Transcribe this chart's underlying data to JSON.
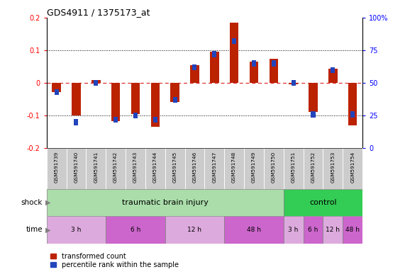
{
  "title": "GDS4911 / 1375173_at",
  "samples": [
    "GSM591739",
    "GSM591740",
    "GSM591741",
    "GSM591742",
    "GSM591743",
    "GSM591744",
    "GSM591745",
    "GSM591746",
    "GSM591747",
    "GSM591748",
    "GSM591749",
    "GSM591750",
    "GSM591751",
    "GSM591752",
    "GSM591753",
    "GSM591754"
  ],
  "red_values": [
    -0.028,
    -0.1,
    0.008,
    -0.118,
    -0.095,
    -0.135,
    -0.058,
    0.055,
    0.095,
    0.185,
    0.065,
    0.075,
    -0.004,
    -0.088,
    0.043,
    -0.13
  ],
  "blue_values_pct": [
    43,
    20,
    50,
    22,
    25,
    22,
    37,
    62,
    72,
    82,
    65,
    65,
    50,
    26,
    60,
    26
  ],
  "ylim_left": [
    -0.2,
    0.2
  ],
  "ylim_right": [
    0,
    100
  ],
  "red_color": "#BB2200",
  "blue_color": "#2244BB",
  "shock_tbi_color": "#AADDAA",
  "shock_ctrl_color": "#33CC55",
  "time_colors": [
    "#DDAADD",
    "#CC66CC",
    "#DDAADD",
    "#CC66CC",
    "#DDAADD",
    "#CC66CC",
    "#DDAADD",
    "#CC66CC"
  ],
  "label_bg_color": "#CCCCCC",
  "time_groups": [
    {
      "label": "3 h",
      "start": 0,
      "end": 3
    },
    {
      "label": "6 h",
      "start": 3,
      "end": 6
    },
    {
      "label": "12 h",
      "start": 6,
      "end": 9
    },
    {
      "label": "48 h",
      "start": 9,
      "end": 12
    },
    {
      "label": "3 h",
      "start": 12,
      "end": 13
    },
    {
      "label": "6 h",
      "start": 13,
      "end": 14
    },
    {
      "label": "12 h",
      "start": 14,
      "end": 15
    },
    {
      "label": "48 h",
      "start": 15,
      "end": 16
    }
  ]
}
